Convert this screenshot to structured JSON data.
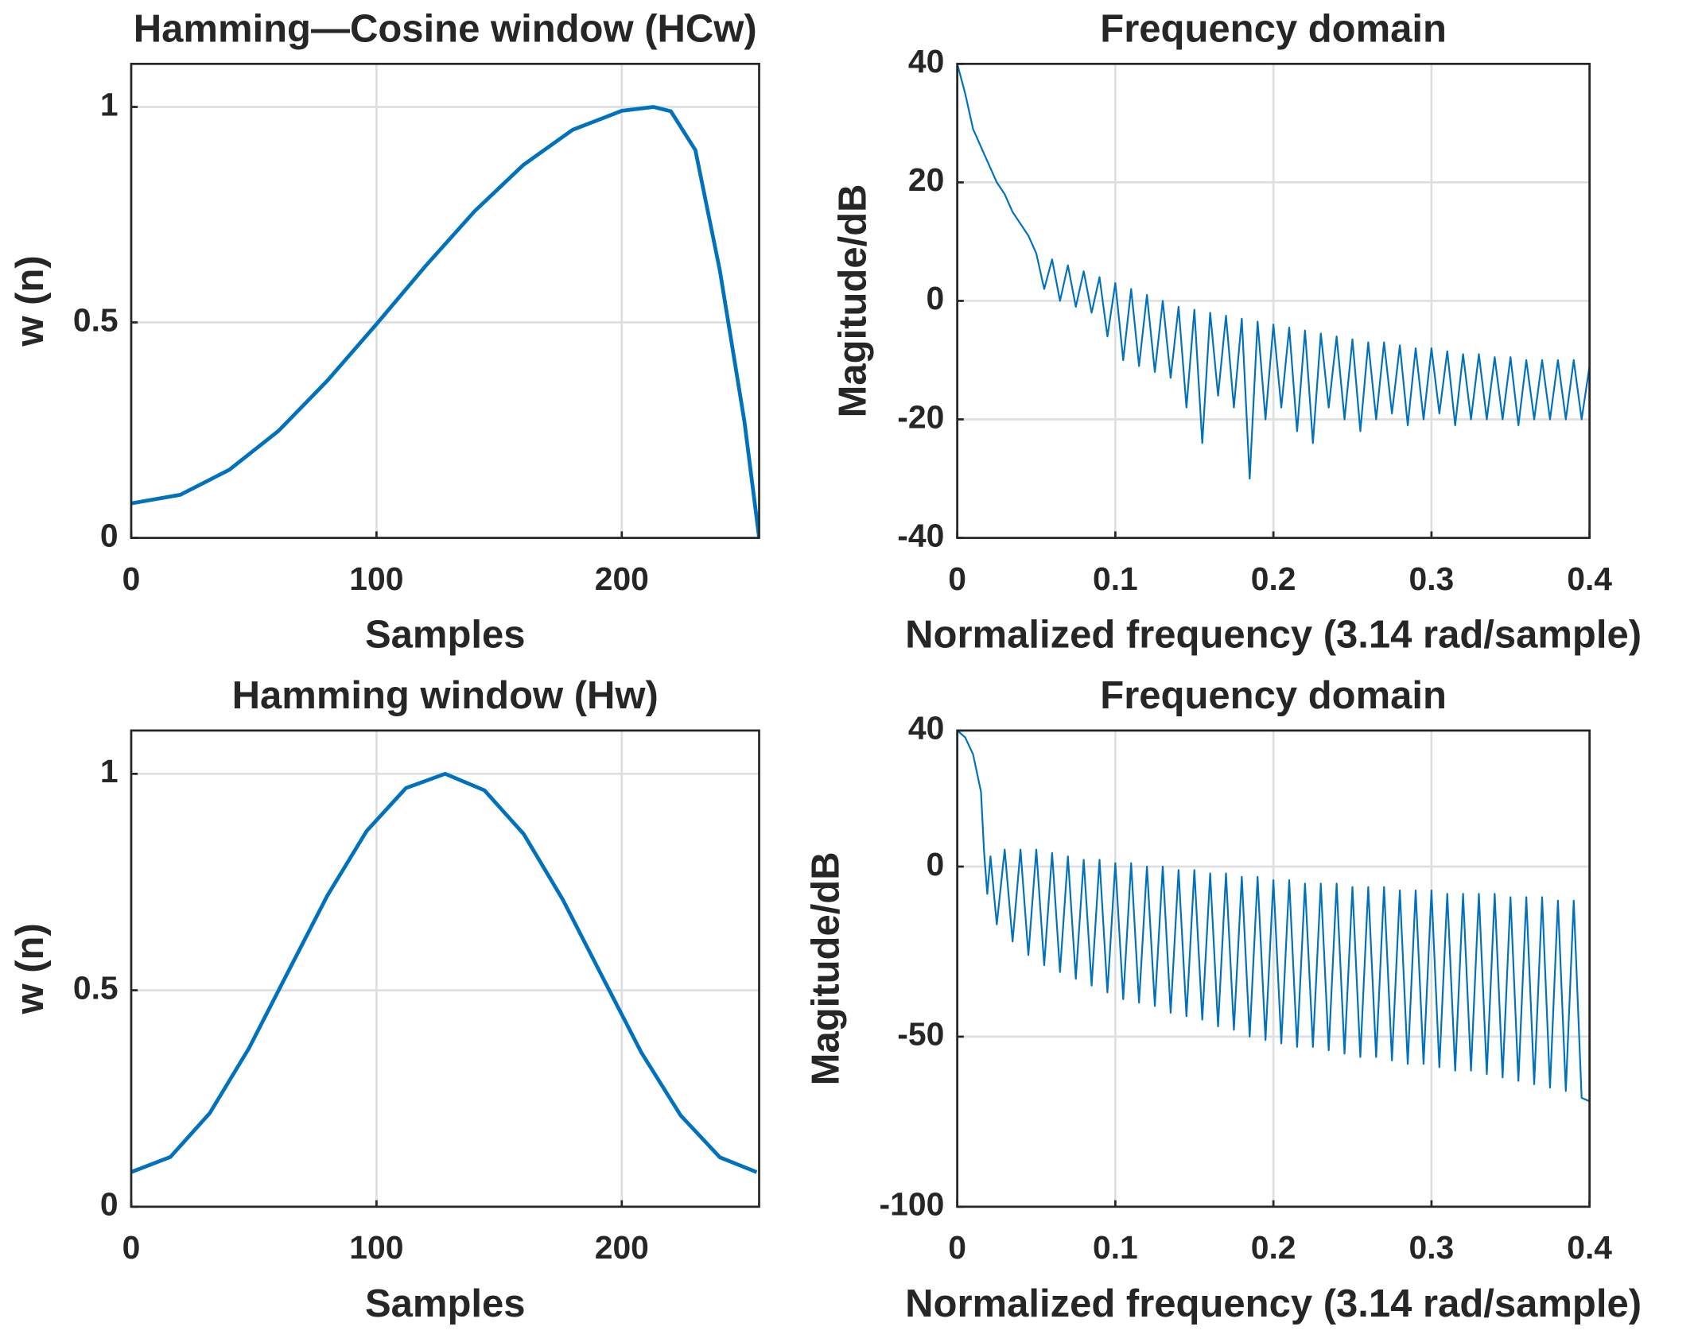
{
  "chart_data": [
    {
      "type": "line",
      "title": "Hamming—Cosine window (HCw)",
      "xlabel": "Samples",
      "ylabel": "w (n)",
      "x": [
        0,
        20,
        40,
        60,
        80,
        100,
        120,
        140,
        160,
        180,
        200,
        213,
        220,
        230,
        240,
        250,
        256
      ],
      "values": [
        0.08,
        0.1,
        0.158,
        0.248,
        0.365,
        0.496,
        0.631,
        0.758,
        0.866,
        0.947,
        0.991,
        1.0,
        0.99,
        0.9,
        0.62,
        0.27,
        0
      ],
      "color": "#0072bd",
      "xlim": [
        0,
        256
      ],
      "ylim": [
        0,
        1.1
      ],
      "xticks": [
        0,
        100,
        200
      ],
      "yticks": [
        0,
        0.5,
        1
      ],
      "grid": true
    },
    {
      "type": "line",
      "title": "Frequency domain",
      "xlabel": "Normalized frequency (3.14 rad/sample)",
      "ylabel": "Magitude/dB",
      "x": [
        0,
        0.005,
        0.01,
        0.015,
        0.02,
        0.025,
        0.03,
        0.035,
        0.04,
        0.045,
        0.05,
        0.055,
        0.06,
        0.065,
        0.07,
        0.075,
        0.08,
        0.085,
        0.09,
        0.095,
        0.1,
        0.105,
        0.11,
        0.115,
        0.12,
        0.125,
        0.13,
        0.135,
        0.14,
        0.145,
        0.15,
        0.155,
        0.16,
        0.165,
        0.17,
        0.175,
        0.18,
        0.185,
        0.19,
        0.195,
        0.2,
        0.205,
        0.21,
        0.215,
        0.22,
        0.225,
        0.23,
        0.235,
        0.24,
        0.245,
        0.25,
        0.255,
        0.26,
        0.265,
        0.27,
        0.275,
        0.28,
        0.285,
        0.29,
        0.295,
        0.3,
        0.305,
        0.31,
        0.315,
        0.32,
        0.325,
        0.33,
        0.335,
        0.34,
        0.345,
        0.35,
        0.355,
        0.36,
        0.365,
        0.37,
        0.375,
        0.38,
        0.385,
        0.39,
        0.395,
        0.4
      ],
      "values": [
        40,
        35,
        29,
        26,
        23,
        20,
        18,
        15,
        13,
        11,
        8,
        2,
        7,
        0,
        6,
        -1,
        5,
        -2,
        4,
        -6,
        3,
        -10,
        2,
        -11,
        1,
        -12,
        0,
        -13,
        -1,
        -18,
        -1.5,
        -24,
        -2,
        -16,
        -2.5,
        -18,
        -3,
        -30,
        -3.5,
        -20,
        -4,
        -18,
        -4.5,
        -22,
        -5,
        -24,
        -5.5,
        -18,
        -6,
        -20,
        -6.5,
        -22,
        -7,
        -20,
        -7,
        -19,
        -7.5,
        -21,
        -8,
        -20,
        -8,
        -19,
        -8.5,
        -21,
        -9,
        -20,
        -9,
        -20,
        -9.5,
        -20,
        -9.5,
        -21,
        -10,
        -20,
        -10,
        -20,
        -10,
        -20,
        -10,
        -20,
        -11
      ],
      "color": "#0072bd",
      "xlim": [
        0,
        0.4
      ],
      "ylim": [
        -40,
        40
      ],
      "xticks": [
        0,
        0.1,
        0.2,
        0.3,
        0.4
      ],
      "yticks": [
        -40,
        -20,
        0,
        20,
        40
      ],
      "grid": true
    },
    {
      "type": "line",
      "title": "Hamming window (Hw)",
      "xlabel": "Samples",
      "ylabel": "w (n)",
      "x": [
        0,
        16,
        32,
        48,
        64,
        80,
        96,
        112,
        128,
        144,
        160,
        176,
        192,
        208,
        224,
        240,
        255
      ],
      "values": [
        0.08,
        0.115,
        0.216,
        0.366,
        0.543,
        0.719,
        0.868,
        0.967,
        1.0,
        0.962,
        0.861,
        0.709,
        0.532,
        0.356,
        0.211,
        0.114,
        0.08
      ],
      "color": "#0072bd",
      "xlim": [
        0,
        256
      ],
      "ylim": [
        0,
        1.1
      ],
      "xticks": [
        0,
        100,
        200
      ],
      "yticks": [
        0,
        0.5,
        1
      ],
      "grid": true
    },
    {
      "type": "line",
      "title": "Frequency domain",
      "xlabel": "Normalized frequency (3.14 rad/sample)",
      "ylabel": "Magitude/dB",
      "x": [
        0,
        0.005,
        0.01,
        0.015,
        0.017,
        0.019,
        0.021,
        0.025,
        0.03,
        0.035,
        0.04,
        0.045,
        0.05,
        0.055,
        0.06,
        0.065,
        0.07,
        0.075,
        0.08,
        0.085,
        0.09,
        0.095,
        0.1,
        0.105,
        0.11,
        0.115,
        0.12,
        0.125,
        0.13,
        0.135,
        0.14,
        0.145,
        0.15,
        0.155,
        0.16,
        0.165,
        0.17,
        0.175,
        0.18,
        0.185,
        0.19,
        0.195,
        0.2,
        0.205,
        0.21,
        0.215,
        0.22,
        0.225,
        0.23,
        0.235,
        0.24,
        0.245,
        0.25,
        0.255,
        0.26,
        0.265,
        0.27,
        0.275,
        0.28,
        0.285,
        0.29,
        0.295,
        0.3,
        0.305,
        0.31,
        0.315,
        0.32,
        0.325,
        0.33,
        0.335,
        0.34,
        0.345,
        0.35,
        0.355,
        0.36,
        0.365,
        0.37,
        0.375,
        0.38,
        0.385,
        0.39,
        0.395,
        0.4
      ],
      "values": [
        40,
        38,
        33,
        22,
        4,
        -8,
        3,
        -17,
        5,
        -22,
        5,
        -26,
        5,
        -29,
        4,
        -31,
        3,
        -33,
        2,
        -35,
        2,
        -37,
        1,
        -39,
        1,
        -40,
        0,
        -41,
        0,
        -43,
        -1,
        -44,
        -1,
        -45,
        -2,
        -47,
        -2,
        -48,
        -3,
        -50,
        -3,
        -51,
        -4,
        -52,
        -4,
        -53,
        -5,
        -53,
        -5,
        -54,
        -5,
        -55,
        -6,
        -56,
        -6,
        -56,
        -6,
        -57,
        -7,
        -58,
        -7,
        -58,
        -7,
        -59,
        -8,
        -60,
        -8,
        -60,
        -8,
        -61,
        -8,
        -62,
        -9,
        -63,
        -9,
        -64,
        -9,
        -65,
        -10,
        -66,
        -10,
        -68,
        -69
      ],
      "color": "#0072bd",
      "xlim": [
        0,
        0.4
      ],
      "ylim": [
        -100,
        40
      ],
      "xticks": [
        0,
        0.1,
        0.2,
        0.3,
        0.4
      ],
      "yticks": [
        -100,
        -50,
        0,
        40
      ],
      "grid": true
    }
  ]
}
